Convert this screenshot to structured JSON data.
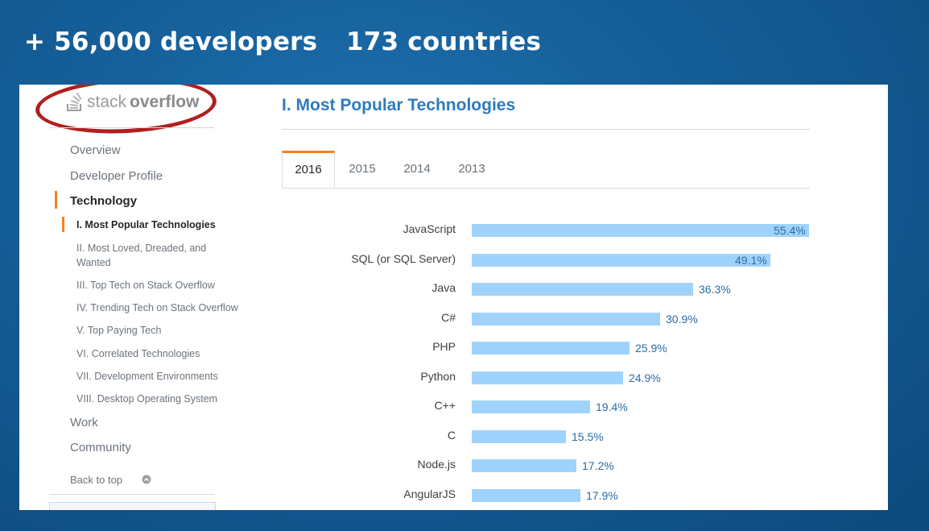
{
  "headline": {
    "developers": "+ 56,000 developers",
    "countries": "173 countries"
  },
  "logo": {
    "part1": "stack",
    "part2": "overflow"
  },
  "sidebar": {
    "items": [
      "Overview",
      "Developer Profile",
      "Technology"
    ],
    "subitems": [
      "I. Most Popular Technologies",
      "II. Most Loved, Dreaded, and Wanted",
      "III. Top Tech on Stack Overflow",
      "IV. Trending Tech on Stack Overflow",
      "V. Top Paying Tech",
      "VI. Correlated Technologies",
      "VII. Development Environments",
      "VIII. Desktop Operating System"
    ],
    "items_after": [
      "Work",
      "Community"
    ],
    "back_to_top": "Back to top"
  },
  "main": {
    "title": "I. Most Popular Technologies",
    "tabs": [
      "2016",
      "2015",
      "2014",
      "2013"
    ],
    "active_tab": "2016"
  },
  "colors": {
    "accent": "#f48024",
    "bar": "#9fd3fb",
    "title": "#2f7bbd",
    "highlight_ring": "#b01f1f"
  },
  "chart_data": {
    "type": "bar",
    "orientation": "horizontal",
    "categories": [
      "JavaScript",
      "SQL (or SQL Server)",
      "Java",
      "C#",
      "PHP",
      "Python",
      "C++",
      "C",
      "Node.js",
      "AngularJS"
    ],
    "values": [
      55.4,
      49.1,
      36.3,
      30.9,
      25.9,
      24.9,
      19.4,
      15.5,
      17.2,
      17.9
    ],
    "value_labels": [
      "55.4%",
      "49.1%",
      "36.3%",
      "30.9%",
      "25.9%",
      "24.9%",
      "19.4%",
      "15.5%",
      "17.2%",
      "17.9%"
    ],
    "unit": "%",
    "xlim": [
      0,
      55.4
    ],
    "grid": false
  }
}
